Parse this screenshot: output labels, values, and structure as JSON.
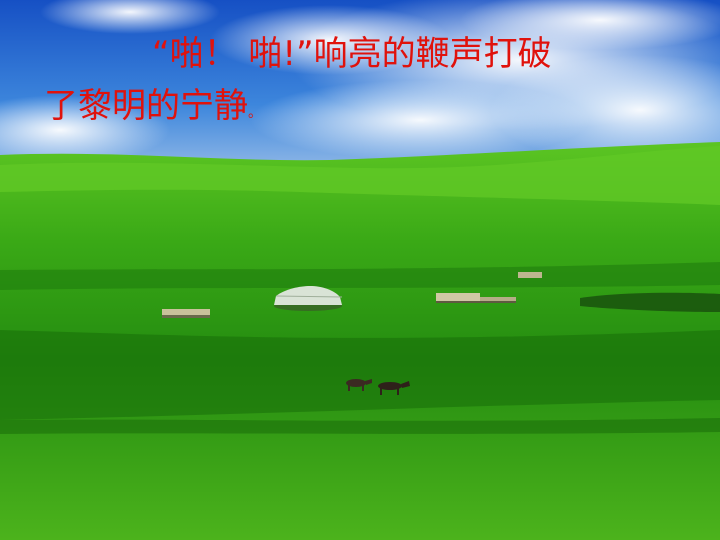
{
  "caption": {
    "line1": "“啪！ 啪!”响亮的鞭声打破",
    "line2": "了黎明的宁静",
    "line2_end": "。"
  },
  "scene": {
    "sky_colors": [
      "#1b5fc8",
      "#3f8de0",
      "#dfe9f5"
    ],
    "grass_colors": [
      "#54c21c",
      "#2b9a14",
      "#1a7a10"
    ],
    "caption_color": "#e0120c"
  }
}
